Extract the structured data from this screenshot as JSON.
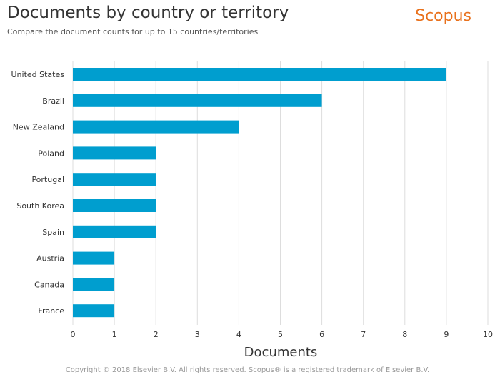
{
  "header": {
    "title": "Documents by country or territory",
    "subtitle": "Compare the document counts for up to 15 countries/territories",
    "brand": "Scopus"
  },
  "footer": {
    "copyright": "Copyright © 2018 Elsevier B.V. All rights reserved. Scopus® is a registered trademark of Elsevier B.V."
  },
  "colors": {
    "bar": "#009ecf",
    "brand": "#e9711c",
    "grid": "#dddddd"
  },
  "chart_data": {
    "type": "bar",
    "orientation": "horizontal",
    "title": "Documents by country or territory",
    "subtitle": "Compare the document counts for up to 15 countries/territories",
    "xlabel": "Documents",
    "ylabel": "",
    "categories": [
      "United States",
      "Brazil",
      "New Zealand",
      "Poland",
      "Portugal",
      "South Korea",
      "Spain",
      "Austria",
      "Canada",
      "France"
    ],
    "values": [
      9,
      6,
      4,
      2,
      2,
      2,
      2,
      1,
      1,
      1
    ],
    "xlim": [
      0,
      10
    ],
    "xticks": [
      0,
      1,
      2,
      3,
      4,
      5,
      6,
      7,
      8,
      9,
      10
    ],
    "grid": true,
    "legend": "none"
  }
}
